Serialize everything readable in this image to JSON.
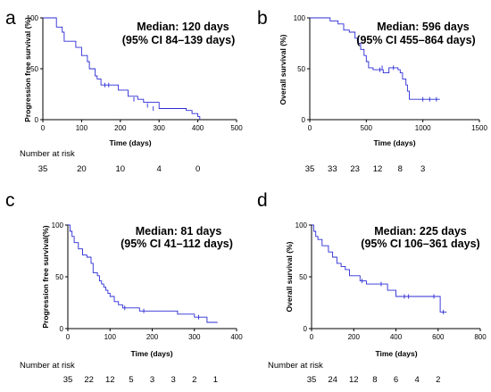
{
  "chart_data": [
    {
      "type": "line",
      "panel": "a",
      "xlabel": "Time (days)",
      "ylabel": "Progression free survival (%)",
      "xlim": [
        0,
        500
      ],
      "ylim": [
        0,
        100
      ],
      "xticks": [
        0,
        100,
        200,
        300,
        400,
        500
      ],
      "yticks": [
        0,
        50,
        100
      ],
      "median_text": "Median: 120 days",
      "ci_text": "(95% CI 84–139 days)",
      "risk_title": "Number at risk",
      "risk_times": [
        0,
        100,
        200,
        300,
        400
      ],
      "risk_counts": [
        "35",
        "20",
        "10",
        "4",
        "0"
      ],
      "curve": [
        [
          0,
          100
        ],
        [
          25,
          100
        ],
        [
          35,
          91
        ],
        [
          50,
          86
        ],
        [
          55,
          77
        ],
        [
          75,
          77
        ],
        [
          85,
          71
        ],
        [
          100,
          63
        ],
        [
          115,
          57
        ],
        [
          120,
          50
        ],
        [
          135,
          43
        ],
        [
          140,
          40
        ],
        [
          150,
          34
        ],
        [
          180,
          34
        ],
        [
          195,
          29
        ],
        [
          220,
          23
        ],
        [
          245,
          20
        ],
        [
          260,
          17
        ],
        [
          300,
          11
        ],
        [
          320,
          11
        ],
        [
          370,
          9
        ],
        [
          385,
          6
        ],
        [
          400,
          3
        ],
        [
          405,
          0
        ]
      ],
      "censored": [
        [
          160,
          34
        ],
        [
          170,
          34
        ],
        [
          235,
          20
        ],
        [
          270,
          14
        ],
        [
          285,
          11
        ]
      ]
    },
    {
      "type": "line",
      "panel": "b",
      "xlabel": "Time (days)",
      "ylabel": "Overall survival (%)",
      "xlim": [
        0,
        1500
      ],
      "ylim": [
        0,
        100
      ],
      "xticks": [
        0,
        500,
        1000,
        1500
      ],
      "yticks": [
        0,
        50,
        100
      ],
      "median_text": "Median: 596 days",
      "ci_text": "(95% CI 455–864 days)",
      "risk_title": "",
      "risk_times": [
        0,
        200,
        400,
        600,
        800,
        1000
      ],
      "risk_counts": [
        "35",
        "33",
        "23",
        "12",
        "8",
        "3"
      ],
      "curve": [
        [
          0,
          100
        ],
        [
          150,
          100
        ],
        [
          180,
          97
        ],
        [
          250,
          94
        ],
        [
          300,
          88
        ],
        [
          350,
          86
        ],
        [
          400,
          80
        ],
        [
          430,
          75
        ],
        [
          450,
          69
        ],
        [
          480,
          63
        ],
        [
          500,
          57
        ],
        [
          520,
          51
        ],
        [
          560,
          49
        ],
        [
          600,
          49
        ],
        [
          650,
          46
        ],
        [
          700,
          51
        ],
        [
          780,
          49
        ],
        [
          800,
          46
        ],
        [
          820,
          40
        ],
        [
          850,
          34
        ],
        [
          864,
          28
        ],
        [
          880,
          20
        ],
        [
          1150,
          20
        ]
      ],
      "censored": [
        [
          620,
          49
        ],
        [
          640,
          51
        ],
        [
          740,
          51
        ],
        [
          1000,
          20
        ],
        [
          1060,
          20
        ],
        [
          1120,
          20
        ]
      ]
    },
    {
      "type": "line",
      "panel": "c",
      "xlabel": "Time (days)",
      "ylabel": "Progression free survival(%)",
      "xlim": [
        0,
        400
      ],
      "ylim": [
        0,
        100
      ],
      "xticks": [
        0,
        100,
        200,
        300,
        400
      ],
      "yticks": [
        0,
        50,
        100
      ],
      "median_text": "Median: 81 days",
      "ci_text": "(95% CI 41–112 days)",
      "risk_title": "Number at risk",
      "risk_times": [
        0,
        50,
        100,
        150,
        200,
        250,
        300,
        350
      ],
      "risk_counts": [
        "35",
        "22",
        "12",
        "5",
        "3",
        "3",
        "2",
        "1"
      ],
      "curve": [
        [
          0,
          100
        ],
        [
          5,
          94
        ],
        [
          10,
          89
        ],
        [
          15,
          83
        ],
        [
          25,
          77
        ],
        [
          35,
          71
        ],
        [
          45,
          69
        ],
        [
          55,
          63
        ],
        [
          60,
          54
        ],
        [
          70,
          51
        ],
        [
          75,
          46
        ],
        [
          80,
          43
        ],
        [
          85,
          40
        ],
        [
          90,
          37
        ],
        [
          95,
          34
        ],
        [
          100,
          31
        ],
        [
          110,
          26
        ],
        [
          120,
          23
        ],
        [
          130,
          20
        ],
        [
          170,
          17
        ],
        [
          200,
          17
        ],
        [
          260,
          14
        ],
        [
          300,
          11
        ],
        [
          330,
          6
        ],
        [
          355,
          6
        ]
      ],
      "censored": [
        [
          135,
          20
        ],
        [
          180,
          17
        ],
        [
          310,
          11
        ]
      ]
    },
    {
      "type": "line",
      "panel": "d",
      "xlabel": "Time (days)",
      "ylabel": "Overall survival (%)",
      "xlim": [
        0,
        800
      ],
      "ylim": [
        0,
        100
      ],
      "xticks": [
        0,
        200,
        400,
        600,
        800
      ],
      "yticks": [
        0,
        50,
        100
      ],
      "median_text": "Median: 225 days",
      "ci_text": "(95% CI 106–361 days)",
      "risk_title": "Number at risk",
      "risk_times": [
        0,
        100,
        200,
        300,
        400,
        500,
        600
      ],
      "risk_counts": [
        "35",
        "24",
        "12",
        "8",
        "6",
        "4",
        "2"
      ],
      "curve": [
        [
          0,
          100
        ],
        [
          10,
          94
        ],
        [
          20,
          89
        ],
        [
          30,
          86
        ],
        [
          50,
          80
        ],
        [
          80,
          74
        ],
        [
          100,
          69
        ],
        [
          120,
          63
        ],
        [
          140,
          60
        ],
        [
          160,
          57
        ],
        [
          180,
          51
        ],
        [
          225,
          51
        ],
        [
          230,
          46
        ],
        [
          260,
          43
        ],
        [
          360,
          37
        ],
        [
          400,
          31
        ],
        [
          600,
          31
        ],
        [
          610,
          16
        ],
        [
          640,
          16
        ]
      ],
      "censored": [
        [
          240,
          46
        ],
        [
          330,
          43
        ],
        [
          440,
          31
        ],
        [
          460,
          31
        ],
        [
          580,
          31
        ],
        [
          625,
          16
        ]
      ]
    }
  ]
}
